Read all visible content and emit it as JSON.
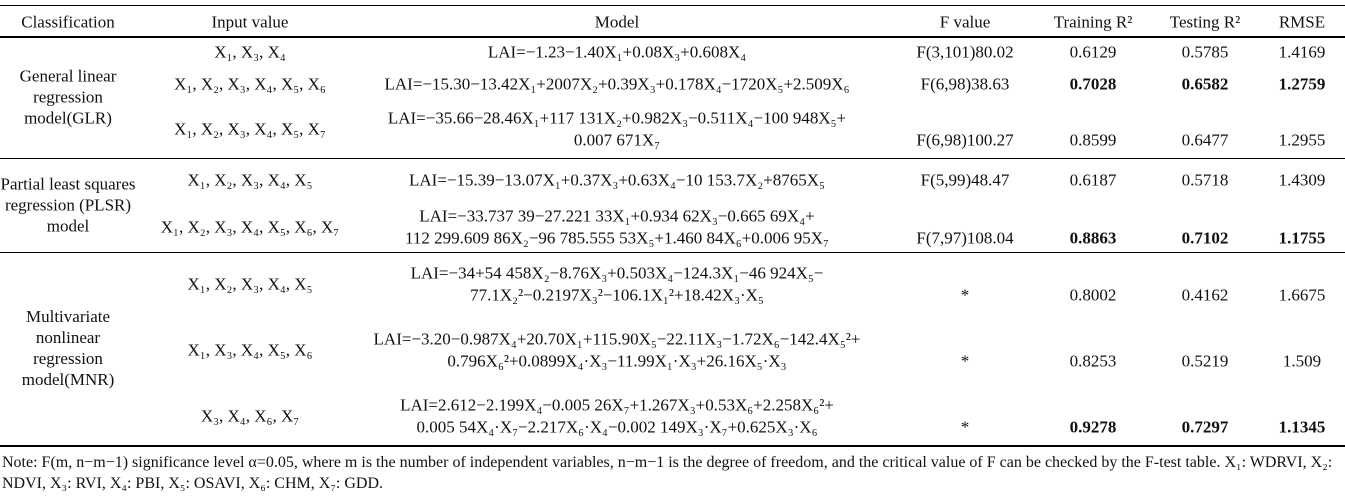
{
  "table": {
    "header": [
      "Classification",
      "Input value",
      "Model",
      "F value",
      "Training R²",
      "Testing R²",
      "RMSE"
    ],
    "groups": [
      {
        "classification": "General linear regression model(GLR)",
        "rows": [
          {
            "input": "X₁, X₃, X₄",
            "model": [
              "LAI=−1.23−1.40X₁+0.08X₃+0.608X₄"
            ],
            "f": "F(3,101)80.02",
            "training": "0.6129",
            "testing": "0.5785",
            "rmse": "1.4169",
            "bold": false
          },
          {
            "input": "X₁, X₂, X₃, X₄, X₅, X₆",
            "model": [
              "LAI=−15.30−13.42X₁+2007X₂+0.39X₃+0.178X₄−1720X₅+2.509X₆"
            ],
            "f": "F(6,98)38.63",
            "training": "0.7028",
            "testing": "0.6582",
            "rmse": "1.2759",
            "bold": true
          },
          {
            "input": "X₁, X₂, X₃, X₄, X₅, X₇",
            "model": [
              "LAI=−35.66−28.46X₁+117 131X₂+0.982X₃−0.511X₄−100 948X₅+",
              "0.007 671X₇"
            ],
            "f": "F(6,98)100.27",
            "training": "0.8599",
            "testing": "0.6477",
            "rmse": "1.2955",
            "bold": false
          }
        ]
      },
      {
        "classification": "Partial least squares regression (PLSR) model",
        "rows": [
          {
            "input": "X₁, X₂, X₃, X₄, X₅",
            "model": [
              "LAI=−15.39−13.07X₁+0.37X₃+0.63X₄−10 153.7X₂+8765X₅"
            ],
            "f": "F(5,99)48.47",
            "training": "0.6187",
            "testing": "0.5718",
            "rmse": "1.4309",
            "bold": false
          },
          {
            "input": "X₁, X₂, X₃, X₄, X₅, X₆, X₇",
            "model": [
              "LAI=−33.737 39−27.221 33X₁+0.934 62X₃−0.665 69X₄+",
              "112 299.609 86X₂−96 785.555 53X₅+1.460 84X₆+0.006 95X₇"
            ],
            "f": "F(7,97)108.04",
            "training": "0.8863",
            "testing": "0.7102",
            "rmse": "1.1755",
            "bold": true
          }
        ]
      },
      {
        "classification": "Multivariate nonlinear regression model(MNR)",
        "rows": [
          {
            "input": "X₁, X₂, X₃, X₄, X₅",
            "model": [
              "LAI=−34+54 458X₂−8.76X₃+0.503X₄−124.3X₁−46 924X₅−",
              "77.1X₂²−0.2197X₃²−106.1X₁²+18.42X₃·X₅"
            ],
            "f": "*",
            "training": "0.8002",
            "testing": "0.4162",
            "rmse": "1.6675",
            "bold": false
          },
          {
            "input": "X₁, X₃, X₄, X₅, X₆",
            "model": [
              "LAI=−3.20−0.987X₄+20.70X₁+115.90X₅−22.11X₃−1.72X₆−142.4X₅²+",
              "0.796X₆²+0.0899X₄·X₃−11.99X₁·X₃+26.16X₅·X₃"
            ],
            "f": "*",
            "training": "0.8253",
            "testing": "0.5219",
            "rmse": "1.509",
            "bold": false
          },
          {
            "input": "X₃, X₄, X₆, X₇",
            "model": [
              "LAI=2.612−2.199X₄−0.005 26X₇+1.267X₃+0.53X₆+2.258X₆²+",
              "0.005 54X₄·X₇−2.217X₆·X₄−0.002 149X₃·X₇+0.625X₃·X₆"
            ],
            "f": "*",
            "training": "0.9278",
            "testing": "0.7297",
            "rmse": "1.1345",
            "bold": true
          }
        ]
      }
    ],
    "note": "Note: F(m, n−m−1) significance level α=0.05, where m is the number of independent variables, n−m−1 is the degree of freedom, and the critical value of F can be checked by the F-test table. X₁: WDRVI, X₂: NDVI, X₃: RVI, X₄: PBI, X₅: OSAVI, X₆: CHM, X₇: GDD."
  }
}
